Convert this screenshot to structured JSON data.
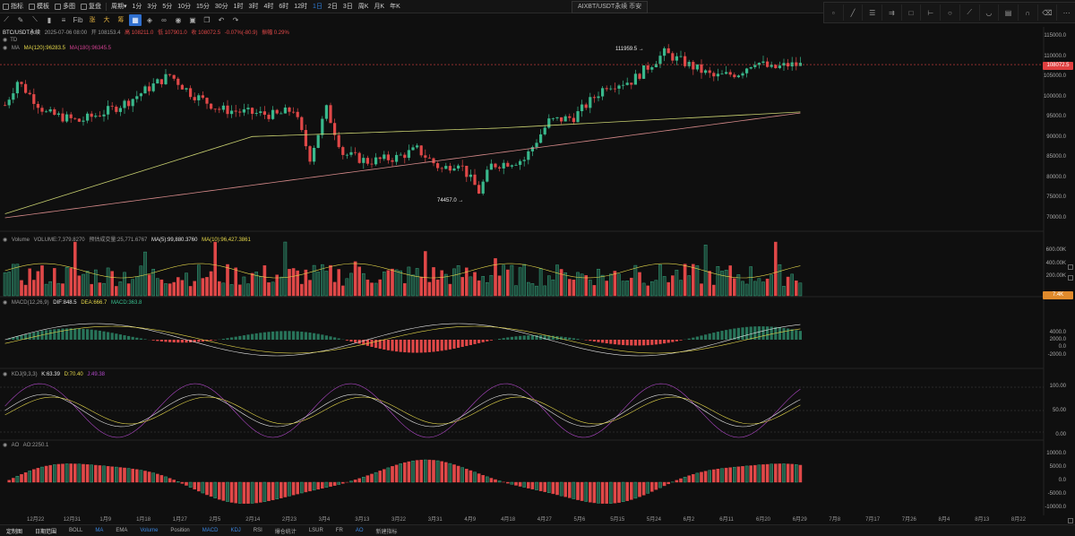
{
  "toolbar": {
    "items": [
      {
        "label": "指标",
        "icon": "indicator-icon"
      },
      {
        "label": "模板",
        "icon": "template-icon"
      },
      {
        "label": "多图",
        "icon": "multi-chart-icon"
      },
      {
        "label": "复盘",
        "icon": "replay-icon"
      },
      {
        "label": "周期",
        "icon": "chevron-down-icon"
      }
    ],
    "timeframes": [
      "1分",
      "3分",
      "5分",
      "10分",
      "15分",
      "30分",
      "1时",
      "3时",
      "4时",
      "6时",
      "12时",
      "1日",
      "2日",
      "3日",
      "周K",
      "月K",
      "年K"
    ],
    "active_timeframe": "1日",
    "symbol_tab": "AIXBT/USDT永续 币安"
  },
  "drawing_tools": {
    "items": [
      "line-tool-icon",
      "pen-tool-icon",
      "ruler-tool-icon",
      "bar-tool-icon",
      "fib-tool-icon",
      "Fib",
      "涨",
      "大",
      "筹",
      "grid-tool-icon",
      "eraser-tool-icon",
      "link-tool-icon",
      "eye-tool-icon",
      "lock-tool-icon",
      "copy-tool-icon",
      "undo-icon",
      "redo-icon"
    ],
    "right_panel": [
      "cursor-icon",
      "trendline-icon",
      "hline-icon",
      "channel-icon",
      "rect-icon",
      "range-icon",
      "ellipse-icon",
      "brush-icon",
      "arc-icon",
      "note-icon",
      "magnet-icon",
      "delete-icon",
      "more-icon"
    ]
  },
  "main_pane": {
    "legend1": [
      "BTC/USDT永续",
      "2025-07-06 08:00",
      "开 108153.4",
      "高 108211.0",
      "低 107901.0",
      "收 108072.5",
      "-0.07%(-80.9)",
      "振幅 0.29%"
    ],
    "legend2": [
      "TD"
    ],
    "legend3": [
      "MA",
      "MA(120):96283.5",
      "MA(180):96345.5"
    ],
    "price_labels": [
      "115000.0",
      "110000.0",
      "105000.0",
      "100000.0",
      "95000.0",
      "90000.0",
      "85000.0",
      "80000.0",
      "75000.0",
      "70000.0"
    ],
    "last_price": "108072.5",
    "high_annotation": "111959.5",
    "low_annotation": "74457.0"
  },
  "volume_pane": {
    "legend": [
      "Volume",
      "VOLUME:7,379.8270",
      "预估成交量:25,771.6767",
      "MA(5):99,880.3760",
      "MA(10):96,427.3861"
    ],
    "labels": [
      "600.00K",
      "400.00K",
      "200.00K"
    ],
    "last_tag": "7.4K"
  },
  "macd_pane": {
    "legend": [
      "MACD(12,26,9)",
      "DIF:848.5",
      "DEA:666.7",
      "MACD:363.8"
    ],
    "labels": [
      "4000.0",
      "2000.0",
      "0.0",
      "-2000.0"
    ]
  },
  "kdj_pane": {
    "legend": [
      "KDJ(9,3,3)",
      "K:63.39",
      "D:70.40",
      "J:49.38"
    ],
    "labels": [
      "100.00",
      "50.00",
      "0.00"
    ]
  },
  "ao_pane": {
    "legend": [
      "AO",
      "AO:2250.1"
    ],
    "labels": [
      "10000.0",
      "5000.0",
      "0.0",
      "-5000.0",
      "-10000.0"
    ]
  },
  "x_axis": [
    "12月22",
    "12月31",
    "1月9",
    "1月18",
    "1月27",
    "2月5",
    "2月14",
    "2月23",
    "3月4",
    "3月13",
    "3月22",
    "3月31",
    "4月9",
    "4月18",
    "4月27",
    "5月6",
    "5月15",
    "5月24",
    "6月2",
    "6月11",
    "6月20",
    "6月29",
    "7月8",
    "7月17",
    "7月26",
    "8月4",
    "8月13",
    "8月22"
  ],
  "bottom_bar": {
    "items": [
      "定制图",
      "日期范围",
      "BOLL",
      "MA",
      "EMA",
      "Volume",
      "Position",
      "MACD",
      "KDJ",
      "RSI",
      "爆仓统计",
      "LSUR",
      "FR",
      "AO",
      "新建指标"
    ]
  },
  "colors": {
    "up": "#39b88c",
    "down": "#e04848",
    "ma120": "#c8d070",
    "ma180": "#d68a8a"
  }
}
